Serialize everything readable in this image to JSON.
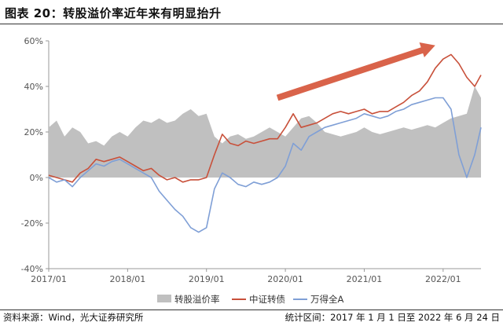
{
  "header": {
    "title": "图表 20：转股溢价率近年来有明显抬升"
  },
  "footer": {
    "source": "资料来源：Wind，光大证券研究所",
    "period": "统计区间：2017 年 1 月 1 日至 2022 年 6 月 24 日"
  },
  "colors": {
    "premium_fill": "#c0c0c0",
    "cb_index": "#c8503a",
    "wind_a": "#7f9fd6",
    "arrow": "#d9634a",
    "axis": "#999999"
  },
  "chart_data": {
    "type": "line",
    "x_ticks": [
      "2017/01",
      "2018/01",
      "2019/01",
      "2020/01",
      "2021/01",
      "2022/01"
    ],
    "x_range": [
      "2017/01",
      "2022/06"
    ],
    "y_ticks": [
      "-40%",
      "-20%",
      "0%",
      "20%",
      "40%",
      "60%"
    ],
    "ylim": [
      -40,
      60
    ],
    "ylabel": "",
    "grid": false,
    "legend_position": "bottom",
    "annotation": "upward arrow from about 2019/12 to 2021/11 indicating rising premium",
    "series": [
      {
        "name": "转股溢价率",
        "kind": "area",
        "x": [
          2017.0,
          2017.1,
          2017.2,
          2017.3,
          2017.4,
          2017.5,
          2017.6,
          2017.7,
          2017.8,
          2017.9,
          2018.0,
          2018.1,
          2018.2,
          2018.3,
          2018.4,
          2018.5,
          2018.6,
          2018.7,
          2018.8,
          2018.9,
          2019.0,
          2019.1,
          2019.2,
          2019.3,
          2019.4,
          2019.5,
          2019.6,
          2019.7,
          2019.8,
          2019.9,
          2020.0,
          2020.1,
          2020.2,
          2020.3,
          2020.4,
          2020.5,
          2020.6,
          2020.7,
          2020.8,
          2020.9,
          2021.0,
          2021.1,
          2021.2,
          2021.3,
          2021.4,
          2021.5,
          2021.6,
          2021.7,
          2021.8,
          2021.9,
          2022.0,
          2022.1,
          2022.2,
          2022.3,
          2022.4,
          2022.48
        ],
        "values": [
          22,
          25,
          18,
          22,
          20,
          15,
          16,
          14,
          18,
          20,
          18,
          22,
          25,
          24,
          26,
          24,
          25,
          28,
          30,
          27,
          28,
          18,
          15,
          18,
          19,
          17,
          18,
          20,
          22,
          20,
          18,
          22,
          26,
          27,
          24,
          20,
          19,
          18,
          19,
          20,
          22,
          20,
          19,
          20,
          21,
          22,
          21,
          22,
          23,
          22,
          24,
          26,
          27,
          28,
          40,
          35
        ]
      },
      {
        "name": "中证转债",
        "kind": "line",
        "x": [
          2017.0,
          2017.1,
          2017.2,
          2017.3,
          2017.4,
          2017.5,
          2017.6,
          2017.7,
          2017.8,
          2017.9,
          2018.0,
          2018.1,
          2018.2,
          2018.3,
          2018.4,
          2018.5,
          2018.6,
          2018.7,
          2018.8,
          2018.9,
          2019.0,
          2019.1,
          2019.2,
          2019.3,
          2019.4,
          2019.5,
          2019.6,
          2019.7,
          2019.8,
          2019.9,
          2020.0,
          2020.1,
          2020.2,
          2020.3,
          2020.4,
          2020.5,
          2020.6,
          2020.7,
          2020.8,
          2020.9,
          2021.0,
          2021.1,
          2021.2,
          2021.3,
          2021.4,
          2021.5,
          2021.6,
          2021.7,
          2021.8,
          2021.9,
          2022.0,
          2022.1,
          2022.2,
          2022.3,
          2022.4,
          2022.48
        ],
        "values": [
          1,
          0,
          -1,
          -2,
          2,
          4,
          8,
          7,
          8,
          9,
          7,
          5,
          3,
          4,
          1,
          -1,
          0,
          -2,
          -1,
          -1,
          0,
          10,
          19,
          15,
          14,
          16,
          15,
          16,
          17,
          17,
          22,
          28,
          22,
          23,
          24,
          26,
          28,
          29,
          28,
          29,
          30,
          28,
          29,
          29,
          31,
          33,
          36,
          38,
          42,
          48,
          52,
          54,
          50,
          44,
          40,
          45
        ]
      },
      {
        "name": "万得全A",
        "kind": "line",
        "x": [
          2017.0,
          2017.1,
          2017.2,
          2017.3,
          2017.4,
          2017.5,
          2017.6,
          2017.7,
          2017.8,
          2017.9,
          2018.0,
          2018.1,
          2018.2,
          2018.3,
          2018.4,
          2018.5,
          2018.6,
          2018.7,
          2018.8,
          2018.9,
          2019.0,
          2019.1,
          2019.2,
          2019.3,
          2019.4,
          2019.5,
          2019.6,
          2019.7,
          2019.8,
          2019.9,
          2020.0,
          2020.1,
          2020.2,
          2020.3,
          2020.4,
          2020.5,
          2020.6,
          2020.7,
          2020.8,
          2020.9,
          2021.0,
          2021.1,
          2021.2,
          2021.3,
          2021.4,
          2021.5,
          2021.6,
          2021.7,
          2021.8,
          2021.9,
          2022.0,
          2022.1,
          2022.2,
          2022.3,
          2022.4,
          2022.48
        ],
        "values": [
          0,
          -2,
          -1,
          -4,
          0,
          3,
          6,
          5,
          7,
          8,
          6,
          4,
          2,
          0,
          -6,
          -10,
          -14,
          -17,
          -22,
          -24,
          -22,
          -5,
          2,
          0,
          -3,
          -4,
          -2,
          -3,
          -2,
          0,
          5,
          15,
          12,
          18,
          20,
          22,
          23,
          24,
          25,
          26,
          28,
          27,
          26,
          27,
          29,
          30,
          32,
          33,
          34,
          35,
          35,
          30,
          10,
          0,
          10,
          22
        ]
      }
    ]
  }
}
